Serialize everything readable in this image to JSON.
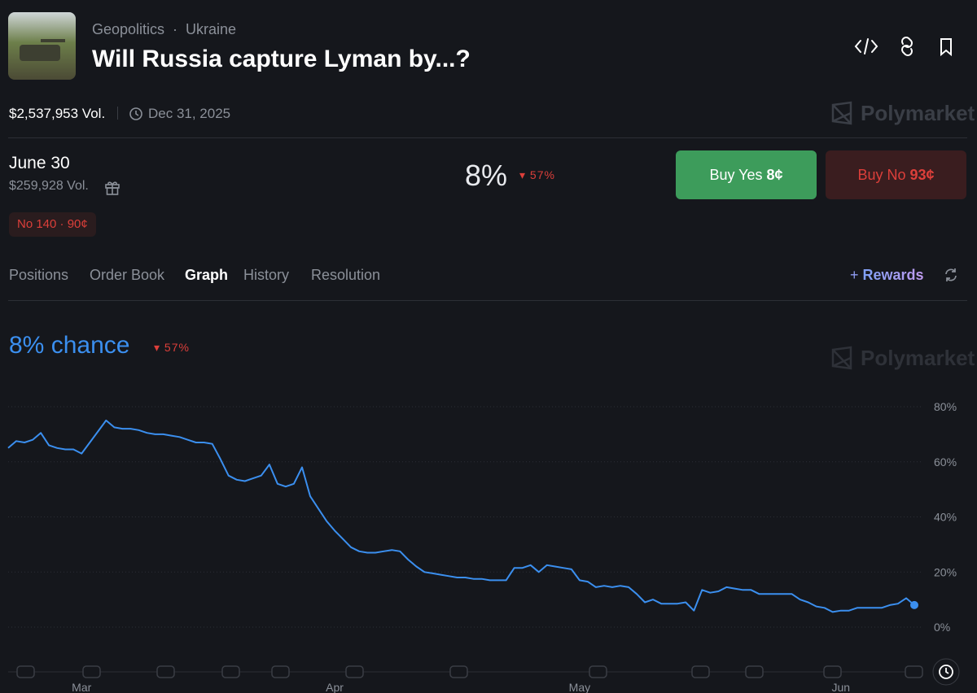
{
  "header": {
    "breadcrumb": [
      "Geopolitics",
      "Ukraine"
    ],
    "title": "Will Russia capture Lyman by...?",
    "volume": "$2,537,953 Vol.",
    "end_date": "Dec 31, 2025",
    "brand": "Polymarket"
  },
  "market": {
    "name": "June 30",
    "volume": "$259,928 Vol.",
    "probability": "8%",
    "change": "57%",
    "buy_yes": {
      "label": "Buy Yes",
      "price": "8¢"
    },
    "buy_no": {
      "label": "Buy No",
      "price": "93¢"
    },
    "position": "No 140 · 90¢"
  },
  "tabs": [
    "Positions",
    "Order Book",
    "Graph",
    "History",
    "Resolution"
  ],
  "rewards": "Rewards",
  "chart_data": {
    "type": "line",
    "title": "8% chance",
    "change": "57%",
    "color": "#3b8fef",
    "grid": true,
    "categories": [
      null,
      null,
      null,
      null,
      null,
      null,
      null,
      null,
      null,
      "Mar",
      null,
      null,
      null,
      null,
      null,
      null,
      null,
      null,
      null,
      null,
      null,
      null,
      null,
      null,
      null,
      null,
      null,
      null,
      null,
      null,
      null,
      null,
      null,
      null,
      null,
      null,
      null,
      null,
      null,
      null,
      "Apr",
      null,
      null,
      null,
      null,
      null,
      null,
      null,
      null,
      null,
      null,
      null,
      null,
      null,
      null,
      null,
      null,
      null,
      null,
      null,
      null,
      null,
      null,
      null,
      null,
      null,
      null,
      null,
      null,
      null,
      "May",
      null,
      null,
      null,
      null,
      null,
      null,
      null,
      null,
      null,
      null,
      null,
      null,
      null,
      null,
      null,
      null,
      null,
      null,
      null,
      null,
      null,
      null,
      null,
      null,
      null,
      null,
      null,
      null,
      null,
      null,
      null,
      "Jun",
      null,
      null,
      null,
      null,
      null,
      null,
      null,
      null,
      null
    ],
    "values": [
      65,
      67.5,
      67,
      68,
      70.5,
      66,
      65,
      64.5,
      64.5,
      63,
      67,
      71,
      75,
      72.5,
      72,
      72,
      71.5,
      70.5,
      70,
      70,
      69.5,
      69,
      68,
      67,
      67,
      66.5,
      61,
      55,
      53.5,
      53,
      54,
      55,
      59,
      52,
      51,
      52,
      58,
      47.5,
      43,
      38.5,
      35,
      32,
      29,
      27.5,
      27,
      27,
      27.5,
      28,
      27.5,
      24.5,
      22,
      20,
      19.5,
      19,
      18.5,
      18,
      18,
      17.5,
      17.5,
      17,
      17,
      17,
      21.5,
      21.5,
      22.5,
      20,
      22.5,
      22,
      21.5,
      21,
      17,
      16.5,
      14.5,
      15,
      14.5,
      15,
      14.5,
      12,
      9,
      10,
      8.5,
      8.5,
      8.5,
      9,
      6,
      13.5,
      12.5,
      13,
      14.5,
      14,
      13.5,
      13.5,
      12,
      12,
      12,
      12,
      12,
      10,
      9,
      7.5,
      7,
      5.5,
      6,
      6,
      7,
      7,
      7,
      7,
      8,
      8.5,
      10.5,
      8
    ],
    "ylim": [
      0,
      80
    ],
    "yticks": [
      {
        "value": 0,
        "label": "0%"
      },
      {
        "value": 20,
        "label": "20%"
      },
      {
        "value": 40,
        "label": "40%"
      },
      {
        "value": 60,
        "label": "60%"
      },
      {
        "value": 80,
        "label": "80%"
      }
    ]
  }
}
